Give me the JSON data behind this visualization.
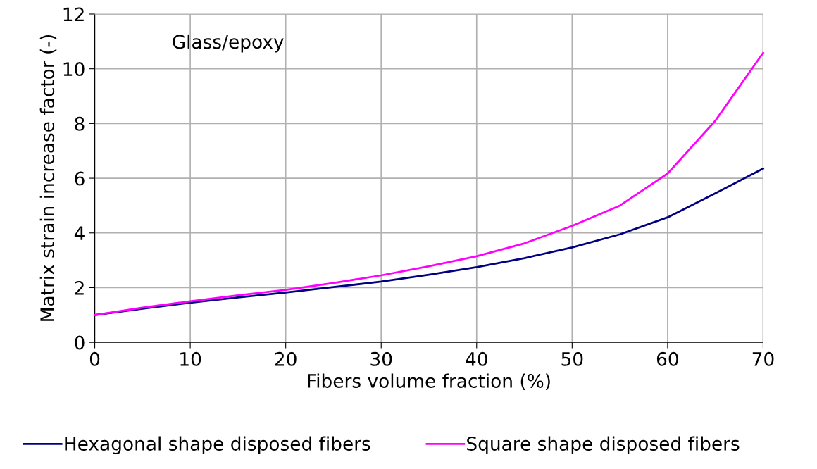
{
  "chart_data": {
    "type": "line",
    "xlabel": "Fibers volume fraction (%)",
    "ylabel": "Matrix strain increase factor (-)",
    "annotations": [
      "Glass/epoxy"
    ],
    "x": [
      0,
      5,
      10,
      15,
      20,
      25,
      30,
      35,
      40,
      45,
      50,
      55,
      60,
      65,
      70
    ],
    "series": [
      {
        "name": "Hexagonal shape disposed fibers",
        "color": "#000080",
        "values": [
          1.0,
          1.23,
          1.45,
          1.64,
          1.82,
          2.02,
          2.22,
          2.47,
          2.75,
          3.08,
          3.47,
          3.95,
          4.57,
          5.45,
          6.35
        ]
      },
      {
        "name": "Square shape disposed fibers",
        "color": "#ff00ff",
        "values": [
          1.0,
          1.27,
          1.5,
          1.72,
          1.92,
          2.17,
          2.45,
          2.78,
          3.15,
          3.62,
          4.26,
          5.0,
          6.17,
          8.1,
          10.58
        ]
      }
    ],
    "xlim": [
      0,
      70
    ],
    "xticks": [
      0,
      10,
      20,
      30,
      40,
      50,
      60,
      70
    ],
    "ylim": [
      0,
      12
    ],
    "yticks": [
      0,
      2,
      4,
      6,
      8,
      10,
      12
    ],
    "grid": true,
    "legend": "bottom",
    "marker": "none",
    "line_style": "solid"
  }
}
